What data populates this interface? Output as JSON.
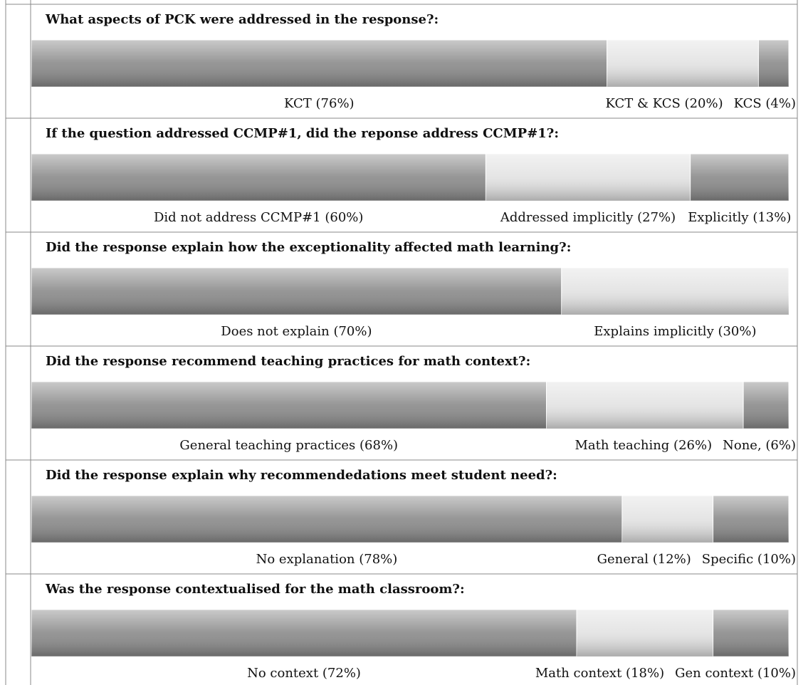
{
  "chart_data": [
    {
      "type": "bar",
      "title": "What aspects of PCK were addressed in the response?:",
      "xlim": [
        0,
        100
      ],
      "series": [
        {
          "name": "KCT (76%)",
          "color": "#8a8a8a",
          "values": [
            76
          ]
        },
        {
          "name": "KCT & KCS (20%)",
          "color": "#e2e2e2",
          "values": [
            20
          ]
        },
        {
          "name": "KCS (4%)",
          "color": "#8a8a8a",
          "values": [
            4
          ]
        }
      ]
    },
    {
      "type": "bar",
      "title": "If the question addressed CCMP#1, did the reponse address CCMP#1?:",
      "xlim": [
        0,
        100
      ],
      "series": [
        {
          "name": "Did not address CCMP#1 (60%)",
          "color": "#8a8a8a",
          "values": [
            60
          ]
        },
        {
          "name": "Addressed implicitly (27%)",
          "color": "#e2e2e2",
          "values": [
            27
          ]
        },
        {
          "name": "Explicitly (13%)",
          "color": "#8a8a8a",
          "values": [
            13
          ]
        }
      ]
    },
    {
      "type": "bar",
      "title": "Did the response explain how the exceptionality affected math learning?:",
      "xlim": [
        0,
        100
      ],
      "series": [
        {
          "name": "Does not explain (70%)",
          "color": "#8a8a8a",
          "values": [
            70
          ]
        },
        {
          "name": "Explains implicitly (30%)",
          "color": "#e2e2e2",
          "values": [
            30
          ]
        }
      ]
    },
    {
      "type": "bar",
      "title": "Did the response recommend teaching practices for math context?:",
      "xlim": [
        0,
        100
      ],
      "series": [
        {
          "name": "General teaching practices (68%)",
          "color": "#8a8a8a",
          "values": [
            68
          ]
        },
        {
          "name": "Math teaching (26%)",
          "color": "#e2e2e2",
          "values": [
            26
          ]
        },
        {
          "name": "None, (6%)",
          "color": "#8a8a8a",
          "values": [
            6
          ]
        }
      ]
    },
    {
      "type": "bar",
      "title": "Did the response explain why recommendedations meet student need?:",
      "xlim": [
        0,
        100
      ],
      "series": [
        {
          "name": "No explanation (78%)",
          "color": "#8a8a8a",
          "values": [
            78
          ]
        },
        {
          "name": "General (12%)",
          "color": "#e2e2e2",
          "values": [
            12
          ]
        },
        {
          "name": "Specific (10%)",
          "color": "#8a8a8a",
          "values": [
            10
          ]
        }
      ]
    },
    {
      "type": "bar",
      "title": "Was the response contextualised for the math classroom?:",
      "xlim": [
        0,
        100
      ],
      "series": [
        {
          "name": "No context (72%)",
          "color": "#8a8a8a",
          "values": [
            72
          ]
        },
        {
          "name": "Math context (18%)",
          "color": "#e2e2e2",
          "values": [
            18
          ]
        },
        {
          "name": "Gen context (10%)",
          "color": "#8a8a8a",
          "values": [
            10
          ]
        }
      ]
    }
  ]
}
